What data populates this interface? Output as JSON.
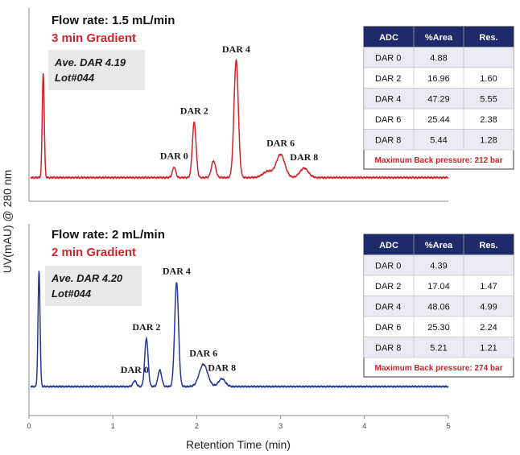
{
  "chart_data": {
    "type": "line",
    "xlabel": "Retention Time (min)",
    "ylabel": "UV(mAU) @ 280 nm",
    "xlim": [
      0,
      5
    ],
    "xticks": [
      "0",
      "1",
      "2",
      "3",
      "4",
      "5"
    ],
    "grid": false,
    "panels": [
      {
        "title": "Flow rate: 1.5 mL/min",
        "subtitle": "3 min Gradient",
        "info": [
          "Ave. DAR 4.19",
          "Lot#044"
        ],
        "line_color": "#d0242b",
        "baseline": 0.05,
        "peaks": [
          {
            "x": 0.17,
            "height": 1.0,
            "width": 0.012
          },
          {
            "x": 1.73,
            "height": 0.1,
            "width": 0.02
          },
          {
            "x": 1.97,
            "height": 0.53,
            "width": 0.022
          },
          {
            "x": 2.2,
            "height": 0.16,
            "width": 0.025
          },
          {
            "x": 2.47,
            "height": 1.12,
            "width": 0.026
          },
          {
            "x": 2.85,
            "height": 0.06,
            "width": 0.06
          },
          {
            "x": 3.0,
            "height": 0.22,
            "width": 0.05
          },
          {
            "x": 3.28,
            "height": 0.09,
            "width": 0.05
          }
        ],
        "peak_labels": [
          {
            "text": "DAR 0",
            "x": 1.73,
            "height": 0.1
          },
          {
            "text": "DAR 2",
            "x": 1.97,
            "height": 0.53
          },
          {
            "text": "DAR 4",
            "x": 2.47,
            "height": 1.12
          },
          {
            "text": "DAR 6",
            "x": 3.0,
            "height": 0.22
          },
          {
            "text": "DAR 8",
            "x": 3.28,
            "height": 0.09
          }
        ],
        "table": {
          "headers": [
            "ADC",
            "%Area",
            "Res."
          ],
          "rows": [
            [
              "DAR 0",
              "4.88",
              ""
            ],
            [
              "DAR 2",
              "16.96",
              "1.60"
            ],
            [
              "DAR 4",
              "47.29",
              "5.55"
            ],
            [
              "DAR 6",
              "25.44",
              "2.38"
            ],
            [
              "DAR 8",
              "5.44",
              "1.28"
            ]
          ],
          "note": "Maximum Back pressure: 212 bar"
        }
      },
      {
        "title": "Flow rate: 2 mL/min",
        "subtitle": "2 min Gradient",
        "info": [
          "Ave. DAR 4.20",
          "Lot#044"
        ],
        "line_color": "#22399a",
        "baseline": 0.05,
        "peaks": [
          {
            "x": 0.12,
            "height": 1.2,
            "width": 0.012
          },
          {
            "x": 1.26,
            "height": 0.06,
            "width": 0.02
          },
          {
            "x": 1.4,
            "height": 0.5,
            "width": 0.02
          },
          {
            "x": 1.56,
            "height": 0.17,
            "width": 0.022
          },
          {
            "x": 1.76,
            "height": 1.08,
            "width": 0.023
          },
          {
            "x": 2.08,
            "height": 0.23,
            "width": 0.05
          },
          {
            "x": 2.3,
            "height": 0.08,
            "width": 0.04
          }
        ],
        "peak_labels": [
          {
            "text": "DAR 0",
            "x": 1.26,
            "height": 0.06
          },
          {
            "text": "DAR 2",
            "x": 1.4,
            "height": 0.5
          },
          {
            "text": "DAR 4",
            "x": 1.76,
            "height": 1.08
          },
          {
            "text": "DAR 6",
            "x": 2.08,
            "height": 0.23
          },
          {
            "text": "DAR 8",
            "x": 2.3,
            "height": 0.08
          }
        ],
        "table": {
          "headers": [
            "ADC",
            "%Area",
            "Res."
          ],
          "rows": [
            [
              "DAR 0",
              "4.39",
              ""
            ],
            [
              "DAR 2",
              "17.04",
              "1.47"
            ],
            [
              "DAR 4",
              "48.06",
              "4.99"
            ],
            [
              "DAR 6",
              "25.30",
              "2.24"
            ],
            [
              "DAR 8",
              "5.21",
              "1.21"
            ]
          ],
          "note": "Maximum Back pressure: 274 bar"
        }
      }
    ],
    "table_header_color": "#1f2a6b"
  }
}
